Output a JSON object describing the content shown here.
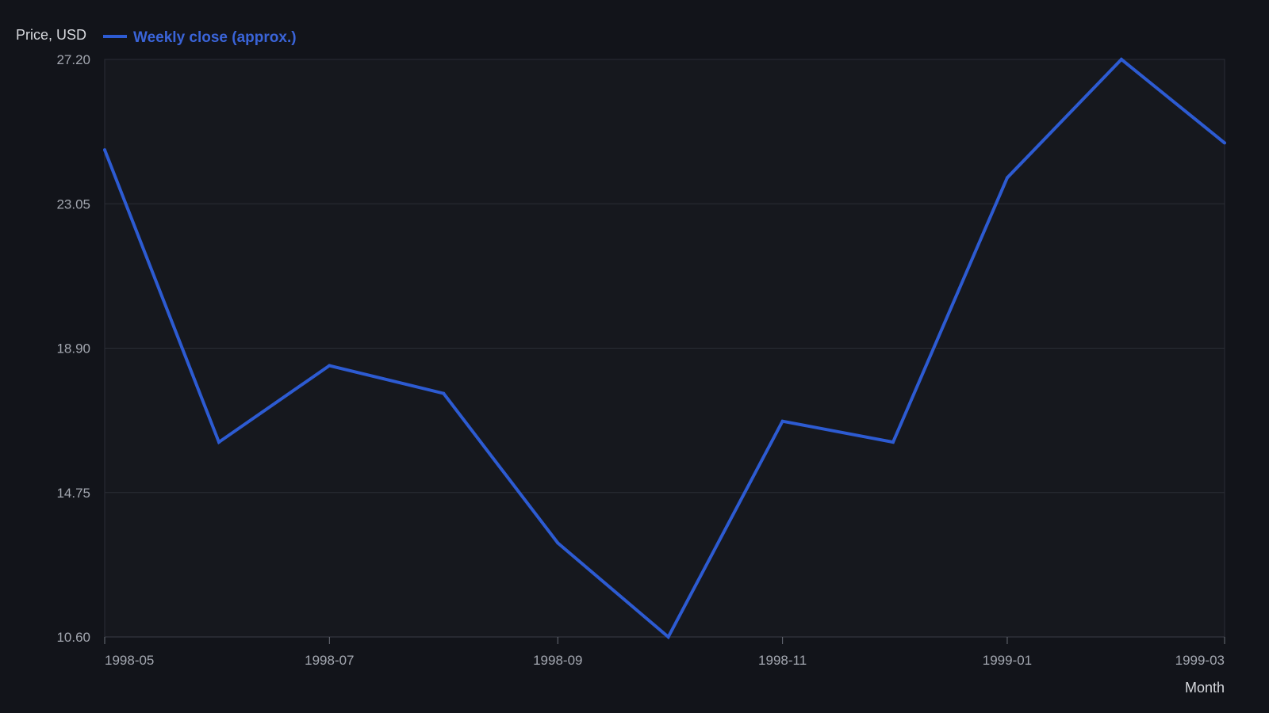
{
  "chart_data": {
    "type": "line",
    "title": "",
    "ylabel": "Price, USD",
    "xlabel": "Month",
    "ylim": [
      10.6,
      27.2
    ],
    "yticks": [
      10.6,
      14.75,
      18.9,
      23.05,
      27.2
    ],
    "yticks_labels": [
      "10.60",
      "14.75",
      "18.90",
      "23.05",
      "27.20"
    ],
    "x_range": [
      "1998-05-01",
      "1999-03-01"
    ],
    "xticks": [
      "1998-05-01",
      "1998-07-01",
      "1998-09-01",
      "1998-11-01",
      "1999-01-01",
      "1999-03-01"
    ],
    "xticks_labels": [
      "1998-05",
      "1998-07",
      "1998-09",
      "1998-11",
      "1999-01",
      "1999-03"
    ],
    "grid": "horizontal",
    "legend_position": "top-left",
    "series": [
      {
        "name": "Weekly close (approx.)",
        "color": "#2d5bd2",
        "x": [
          "1998-05-01",
          "1998-06-01",
          "1998-07-01",
          "1998-08-01",
          "1998-09-01",
          "1998-10-01",
          "1998-11-01",
          "1998-12-01",
          "1999-01-01",
          "1999-02-01",
          "1999-03-01"
        ],
        "values": [
          24.6,
          16.2,
          18.4,
          17.6,
          13.3,
          10.6,
          16.8,
          16.2,
          23.8,
          27.2,
          24.8
        ]
      }
    ]
  }
}
